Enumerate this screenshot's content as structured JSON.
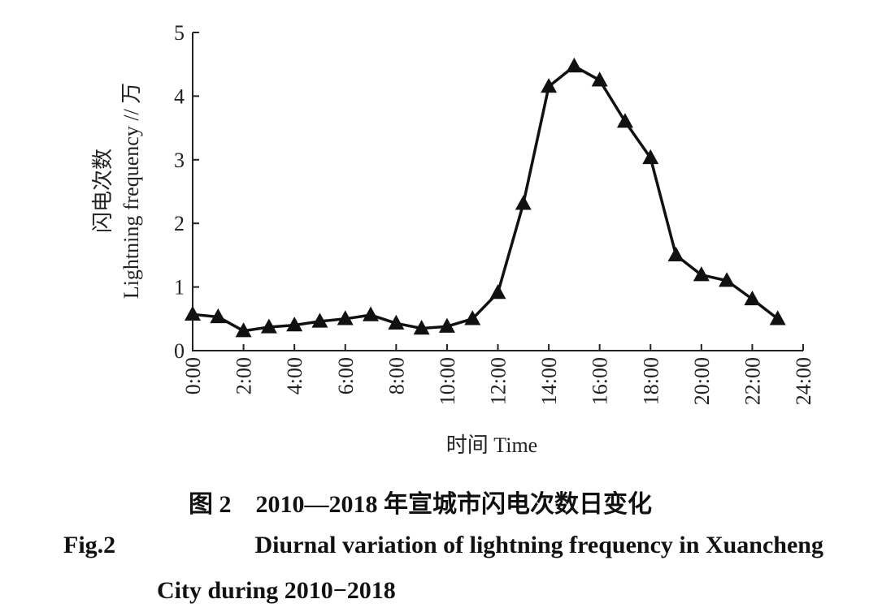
{
  "chart_data": {
    "type": "line",
    "xlabel": "时间 Time",
    "ylabel_zh": "闪电次数",
    "ylabel_en": "Lightning frequency // 万",
    "x_tick_labels": [
      "0:00",
      "2:00",
      "4:00",
      "6:00",
      "8:00",
      "10:00",
      "12:00",
      "14:00",
      "16:00",
      "18:00",
      "20:00",
      "22:00",
      "24:00"
    ],
    "x_ticks": [
      0,
      2,
      4,
      6,
      8,
      10,
      12,
      14,
      16,
      18,
      20,
      22,
      24
    ],
    "y_tick_labels": [
      "0",
      "1",
      "2",
      "3",
      "4",
      "5"
    ],
    "y_ticks": [
      0,
      1,
      2,
      3,
      4,
      5
    ],
    "xlim": [
      0,
      24
    ],
    "ylim": [
      0,
      5
    ],
    "marker": "triangle",
    "series": [
      {
        "x": [
          0,
          1,
          2,
          3,
          4,
          5,
          6,
          7,
          8,
          9,
          10,
          11,
          12,
          13,
          14,
          15,
          16,
          17,
          18,
          19,
          20,
          21,
          22,
          23
        ],
        "values": [
          0.57,
          0.53,
          0.31,
          0.37,
          0.4,
          0.46,
          0.5,
          0.56,
          0.43,
          0.35,
          0.38,
          0.5,
          0.91,
          2.31,
          4.15,
          4.47,
          4.25,
          3.6,
          3.03,
          1.5,
          1.19,
          1.1,
          0.81,
          0.5
        ]
      }
    ]
  },
  "caption": {
    "zh": "图 2　2010—2018 年宣城市闪电次数日变化",
    "en_label": "Fig.2",
    "en_line1": "Diurnal variation of lightning frequency in Xuancheng",
    "en_line2": "City during 2010−2018"
  }
}
